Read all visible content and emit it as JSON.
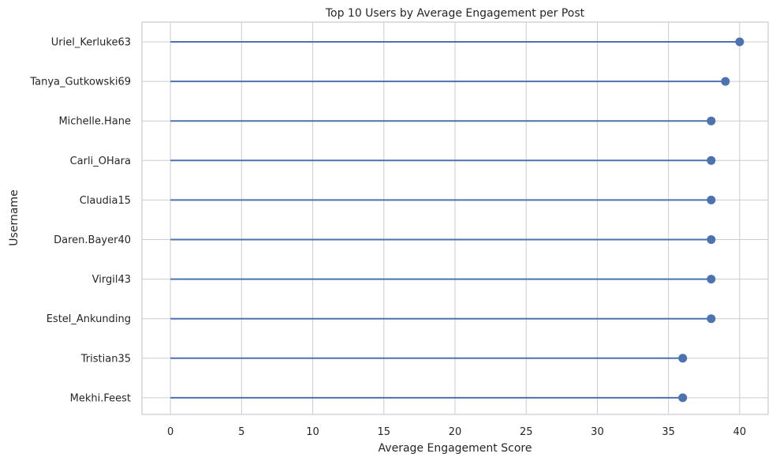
{
  "chart_data": {
    "type": "lollipop",
    "title": "Top 10 Users by Average Engagement per Post",
    "xlabel": "Average Engagement Score",
    "ylabel": "Username",
    "xlim": [
      -2,
      42
    ],
    "xticks": [
      0,
      5,
      10,
      15,
      20,
      25,
      30,
      35,
      40
    ],
    "grid": true,
    "orientation": "horizontal",
    "categories": [
      "Uriel_Kerluke63",
      "Tanya_Gutkowski69",
      "Michelle.Hane",
      "Carli_OHara",
      "Claudia15",
      "Daren.Bayer40",
      "Virgil43",
      "Estel_Ankunding",
      "Tristian35",
      "Mekhi.Feest"
    ],
    "values": [
      40,
      39,
      38,
      38,
      38,
      38,
      38,
      38,
      36,
      36
    ],
    "color": "#4c72b0"
  }
}
